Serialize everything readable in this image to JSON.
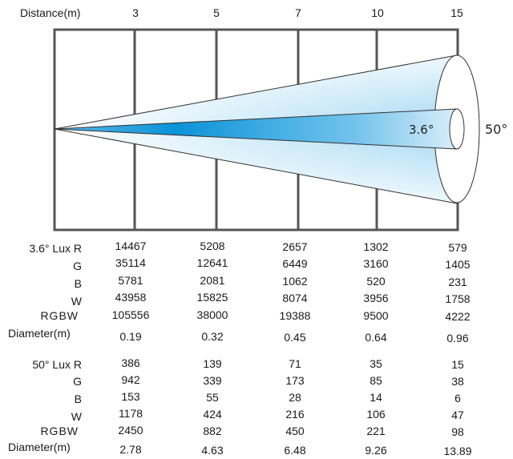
{
  "header": {
    "distance_label": "Distance(m)",
    "distances": [
      "3",
      "5",
      "7",
      "10",
      "15"
    ]
  },
  "beam": {
    "narrow_angle_label": "3.6°",
    "wide_angle_label": "50°",
    "colors": {
      "wide_fill_edge": "#ffffff",
      "wide_fill_end": "#9fd6f2",
      "narrow_fill_start": "#0a93d8",
      "narrow_fill_end": "#d9eef9",
      "frame": "#555555"
    }
  },
  "tables": [
    {
      "rows": [
        {
          "label": "3.6° Lux R",
          "values": [
            "14467",
            "5208",
            "2657",
            "1302",
            "579"
          ]
        },
        {
          "label": "G",
          "values": [
            "35114",
            "12641",
            "6449",
            "3160",
            "1405"
          ]
        },
        {
          "label": "B",
          "values": [
            "5781",
            "2081",
            "1062",
            "520",
            "231"
          ]
        },
        {
          "label": "W",
          "values": [
            "43958",
            "15825",
            "8074",
            "3956",
            "1758"
          ]
        },
        {
          "label": "RGBW",
          "values": [
            "105556",
            "38000",
            "19388",
            "9500",
            "4222"
          ]
        },
        {
          "label": "Diameter(m)",
          "values": [
            "0.19",
            "0.32",
            "0.45",
            "0.64",
            "0.96"
          ]
        }
      ]
    },
    {
      "rows": [
        {
          "label": "50° Lux R",
          "values": [
            "386",
            "139",
            "71",
            "35",
            "15"
          ]
        },
        {
          "label": "G",
          "values": [
            "942",
            "339",
            "173",
            "85",
            "38"
          ]
        },
        {
          "label": "B",
          "values": [
            "153",
            "55",
            "28",
            "14",
            "6"
          ]
        },
        {
          "label": "W",
          "values": [
            "1178",
            "424",
            "216",
            "106",
            "47"
          ]
        },
        {
          "label": "RGBW",
          "values": [
            "2450",
            "882",
            "450",
            "221",
            "98"
          ]
        },
        {
          "label": "Diameter(m)",
          "values": [
            "2.78",
            "4.63",
            "6.48",
            "9.26",
            "13.89"
          ]
        }
      ]
    }
  ]
}
